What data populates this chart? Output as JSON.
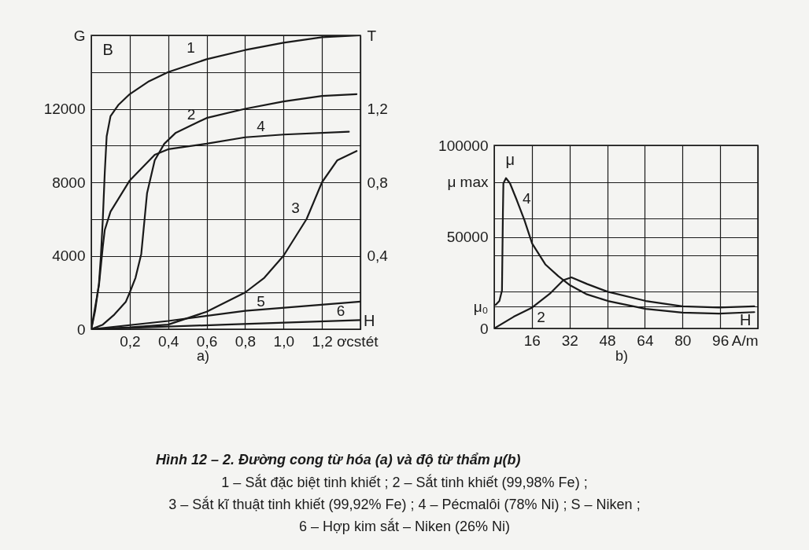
{
  "chart_data": [
    {
      "type": "line",
      "xlabel": "ơcstét",
      "ylabel": "B",
      "xlim": [
        0,
        1.4
      ],
      "ylim": [
        0,
        16000
      ],
      "y2lim": [
        0,
        1.6
      ],
      "xticks": [
        {
          "value": 0.2,
          "label": "0,2"
        },
        {
          "value": 0.4,
          "label": "0,4"
        },
        {
          "value": 0.6,
          "label": "0,6"
        },
        {
          "value": 0.8,
          "label": "0,8"
        },
        {
          "value": 1.0,
          "label": "1,0"
        },
        {
          "value": 1.2,
          "label": "1,2"
        },
        {
          "value": 1.4,
          "label": null
        }
      ],
      "yticks": [
        0,
        {
          "value": 2000,
          "label": null
        },
        4000,
        {
          "value": 6000,
          "label": null
        },
        8000,
        {
          "value": 10000,
          "label": null
        },
        12000,
        {
          "value": 14000,
          "label": null
        },
        {
          "value": 16000,
          "label": "G"
        }
      ],
      "y2ticks": [
        {
          "value": 0.4,
          "label": "0,4"
        },
        {
          "value": 0.8,
          "label": "0,8"
        },
        {
          "value": 1.2,
          "label": "1,2"
        },
        {
          "value": 1.6,
          "label": "T"
        }
      ],
      "grid": true,
      "series": [
        {
          "name": "1",
          "color": "#1a1a1a",
          "x": [
            0,
            0.02,
            0.04,
            0.05,
            0.06,
            0.07,
            0.08,
            0.1,
            0.14,
            0.2,
            0.3,
            0.4,
            0.6,
            0.8,
            1.0,
            1.2,
            1.4
          ],
          "values": [
            0,
            1000,
            2500,
            4000,
            6000,
            8500,
            10500,
            11600,
            12200,
            12800,
            13500,
            14000,
            14700,
            15200,
            15600,
            15900,
            16000
          ]
        },
        {
          "name": "2",
          "color": "#1a1a1a",
          "x": [
            0,
            0.06,
            0.12,
            0.18,
            0.2,
            0.23,
            0.26,
            0.29,
            0.33,
            0.38,
            0.44,
            0.52,
            0.6,
            0.8,
            1.0,
            1.2,
            1.38
          ],
          "values": [
            0,
            250,
            800,
            1500,
            2000,
            2800,
            4100,
            7400,
            9200,
            10100,
            10700,
            11100,
            11500,
            12000,
            12400,
            12700,
            12800
          ]
        },
        {
          "name": "3",
          "color": "#1a1a1a",
          "x": [
            0,
            0.2,
            0.4,
            0.6,
            0.8,
            0.9,
            1.0,
            1.12,
            1.2,
            1.28,
            1.38
          ],
          "values": [
            0,
            100,
            250,
            950,
            2000,
            2800,
            4000,
            6000,
            8000,
            9200,
            9700
          ]
        },
        {
          "name": "4",
          "color": "#1a1a1a",
          "x": [
            0,
            0.04,
            0.06,
            0.07,
            0.1,
            0.2,
            0.33,
            0.4,
            0.6,
            0.8,
            1.0,
            1.34
          ],
          "values": [
            0,
            2400,
            4500,
            5400,
            6400,
            8100,
            9500,
            9800,
            10100,
            10450,
            10600,
            10750
          ]
        },
        {
          "name": "5",
          "color": "#1a1a1a",
          "x": [
            0,
            0.4,
            0.8,
            1.4
          ],
          "values": [
            0,
            450,
            1000,
            1500
          ]
        },
        {
          "name": "6",
          "color": "#1a1a1a",
          "x": [
            0,
            0.7,
            1.4
          ],
          "values": [
            0,
            250,
            500
          ]
        }
      ],
      "annotations": [
        "a)",
        "H",
        "Hình 12 – 2. Đường cong từ hóa (a) và độ từ thẩm μ(b)",
        "1 – Sắt đặc biệt tinh khiết ; 2 – Sắt tinh khiết (99,98% Fe) ;",
        "3 – Sắt kĩ thuật tinh khiết (99,92% Fe) ; 4 – Pécmalôi (78% Ni) ; S – Niken ;",
        "6 – Hợp kim sắt – Niken (26% Ni)"
      ]
    },
    {
      "type": "line",
      "ylabel": "μ",
      "xlim": [
        0,
        112
      ],
      "ylim": [
        0,
        100000
      ],
      "xticks": [
        16,
        32,
        48,
        64,
        80,
        96,
        {
          "value": 112,
          "label": "A/m"
        }
      ],
      "yticks": [
        0,
        {
          "value": 12000,
          "label": "μ₀"
        },
        {
          "value": 20000,
          "label": null
        },
        {
          "value": 40000,
          "label": null
        },
        50000,
        {
          "value": 60000,
          "label": null
        },
        {
          "value": 80000,
          "label": "μ max"
        },
        100000
      ],
      "grid": true,
      "series": [
        {
          "name": "4",
          "color": "#1a1a1a",
          "x": [
            0.6,
            2.2,
            3.3,
            3.7,
            3.9,
            5,
            6.7,
            9.4,
            12.8,
            16.1,
            21.7,
            27.2,
            32.2,
            39.4,
            48.3,
            64.4,
            80,
            95.5,
            110.5
          ],
          "values": [
            12900,
            15000,
            20700,
            63500,
            79300,
            82100,
            79300,
            70700,
            59300,
            46400,
            35000,
            28600,
            23600,
            18600,
            15000,
            10700,
            8600,
            8100,
            8900
          ]
        },
        {
          "name": "2",
          "color": "#1a1a1a",
          "x": [
            0,
            8.3,
            16.1,
            23.9,
            29.4,
            32.8,
            39.4,
            48.3,
            64.4,
            80,
            95.5,
            110.5
          ],
          "values": [
            0,
            6400,
            11400,
            19300,
            26400,
            27900,
            24300,
            20000,
            15000,
            12100,
            11400,
            12100
          ]
        }
      ],
      "annotations": [
        "b)",
        "H"
      ]
    }
  ]
}
